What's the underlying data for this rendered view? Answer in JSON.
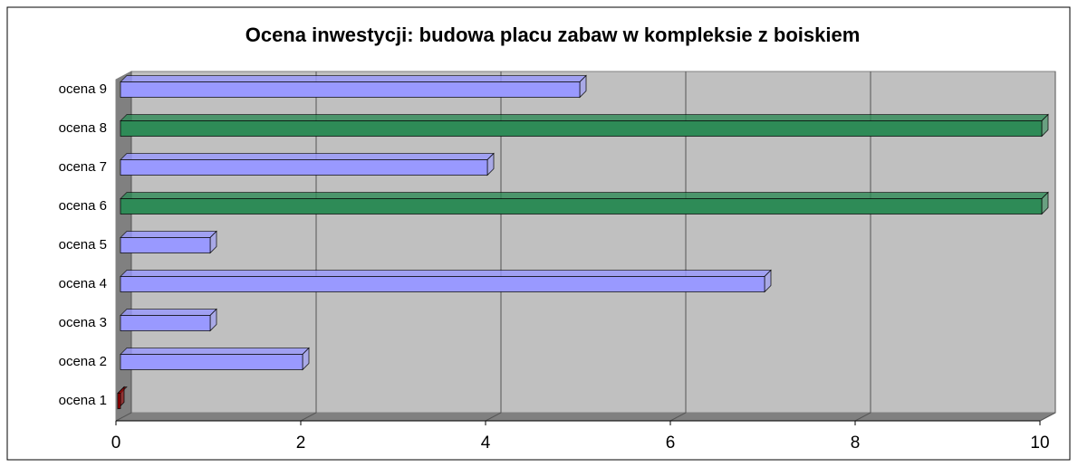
{
  "chart_data": {
    "type": "bar",
    "orientation": "horizontal",
    "title": "Ocena inwestycji: budowa placu zabaw w kompleksie z boiskiem",
    "categories": [
      "ocena 1",
      "ocena 2",
      "ocena 3",
      "ocena 4",
      "ocena 5",
      "ocena 6",
      "ocena 7",
      "ocena 8",
      "ocena 9"
    ],
    "values": [
      0,
      2,
      1,
      7,
      1,
      10,
      4,
      10,
      5
    ],
    "colors": [
      "#990000",
      "#9999ff",
      "#9999ff",
      "#9999ff",
      "#9999ff",
      "#2e8b57",
      "#9999ff",
      "#2e8b57",
      "#9999ff"
    ],
    "xlim": [
      0,
      10
    ],
    "xticks": [
      0,
      2,
      4,
      6,
      8,
      10
    ],
    "grid": true
  }
}
